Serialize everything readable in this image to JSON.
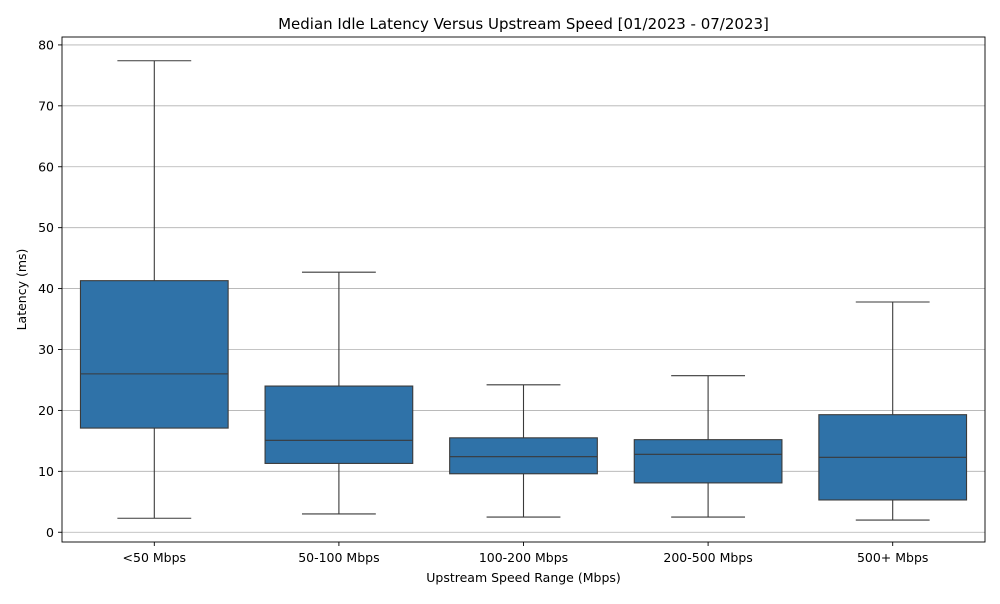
{
  "chart_data": {
    "type": "box",
    "title": "Median Idle Latency Versus Upstream Speed [01/2023 - 07/2023]",
    "xlabel": "Upstream Speed Range (Mbps)",
    "ylabel": "Latency (ms)",
    "ylim": [
      -1.6,
      81.3
    ],
    "yticks": [
      0,
      10,
      20,
      30,
      40,
      50,
      60,
      70,
      80
    ],
    "grid": "horizontal",
    "colors": {
      "box_fill": "#2f72a8",
      "line": "#3a3a3a",
      "grid": "#b0b0b0",
      "frame": "#000000"
    },
    "categories": [
      "<50 Mbps",
      "50-100 Mbps",
      "100-200 Mbps",
      "200-500 Mbps",
      "500+ Mbps"
    ],
    "boxes": [
      {
        "category": "<50 Mbps",
        "whisker_low": 2.3,
        "q1": 17.1,
        "median": 26.0,
        "q3": 41.3,
        "whisker_high": 77.4
      },
      {
        "category": "50-100 Mbps",
        "whisker_low": 3.0,
        "q1": 11.3,
        "median": 15.1,
        "q3": 24.0,
        "whisker_high": 42.7
      },
      {
        "category": "100-200 Mbps",
        "whisker_low": 2.5,
        "q1": 9.6,
        "median": 12.4,
        "q3": 15.5,
        "whisker_high": 24.2
      },
      {
        "category": "200-500 Mbps",
        "whisker_low": 2.5,
        "q1": 8.1,
        "median": 12.8,
        "q3": 15.2,
        "whisker_high": 25.7
      },
      {
        "category": "500+ Mbps",
        "whisker_low": 2.0,
        "q1": 5.3,
        "median": 12.3,
        "q3": 19.3,
        "whisker_high": 37.8
      }
    ]
  }
}
